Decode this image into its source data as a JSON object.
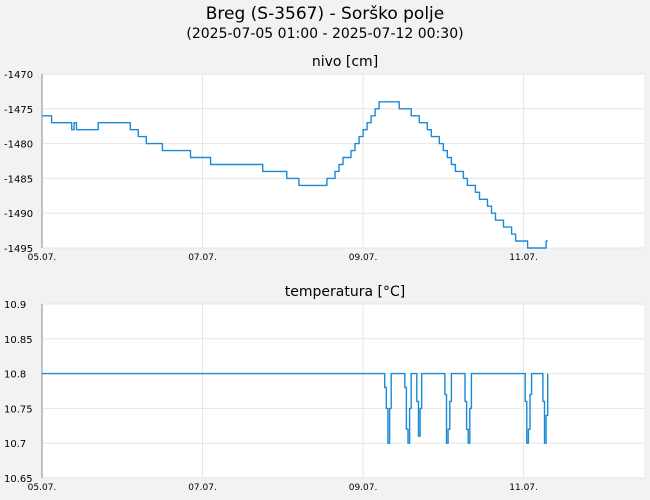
{
  "header": {
    "title": "Breg (S-3567) - Sorško polje",
    "subtitle": "(2025-07-05 01:00 - 2025-07-12 00:30)"
  },
  "colors": {
    "line": "#1a8ad8",
    "grid": "#e6e6e6",
    "plot_bg": "#ffffff",
    "page_bg": "#f2f2f2"
  },
  "chart_data": [
    {
      "type": "line",
      "title": "nivo [cm]",
      "x_unit": "day-of-July",
      "xlim": [
        5.0,
        12.5
      ],
      "ylim": [
        -1495,
        -1470
      ],
      "yticks": [
        -1470,
        -1475,
        -1480,
        -1485,
        -1490,
        -1495
      ],
      "xticks": [
        {
          "value": 5,
          "label": "05.07."
        },
        {
          "value": 7,
          "label": "07.07."
        },
        {
          "value": 9,
          "label": "09.07."
        },
        {
          "value": 11,
          "label": "11.07."
        }
      ],
      "grid": true,
      "step": true,
      "series": [
        {
          "x": [
            5.0,
            5.05,
            5.08,
            5.12,
            5.35,
            5.37,
            5.4,
            5.43,
            5.47,
            5.7,
            5.72,
            5.8,
            5.82,
            5.9,
            6.05,
            6.1,
            6.15,
            6.2,
            6.25,
            6.3,
            6.35,
            6.48,
            6.5,
            6.52,
            6.6,
            6.65,
            6.8,
            6.85,
            7.0,
            7.05,
            7.1,
            7.15,
            7.2,
            7.3,
            7.35,
            7.45,
            7.55,
            7.65,
            7.75,
            7.85,
            8.0,
            8.05,
            8.1,
            8.2,
            8.25,
            8.3,
            8.35,
            8.45,
            8.55,
            8.6,
            8.65,
            8.7,
            8.75,
            8.8,
            8.85,
            8.9,
            8.95,
            9.0,
            9.05,
            9.1,
            9.15,
            9.2,
            9.3,
            9.35,
            9.4,
            9.45,
            9.5,
            9.55,
            9.6,
            9.65,
            9.7,
            9.75,
            9.8,
            9.85,
            9.9,
            9.95,
            10.0,
            10.05,
            10.1,
            10.15,
            10.2,
            10.25,
            10.3,
            10.35,
            10.4,
            10.45,
            10.5,
            10.55,
            10.6,
            10.65,
            10.7,
            10.75,
            10.8,
            10.85,
            10.9,
            10.95,
            11.0,
            11.05,
            11.1,
            11.15,
            11.2,
            11.25,
            11.28,
            11.3
          ],
          "y": [
            -1476,
            -1476,
            -1476,
            -1477,
            -1477,
            -1478,
            -1477,
            -1478,
            -1478,
            -1477,
            -1477,
            -1477,
            -1477,
            -1477,
            -1477,
            -1478,
            -1478,
            -1479,
            -1479,
            -1480,
            -1480,
            -1480,
            -1481,
            -1481,
            -1481,
            -1481,
            -1481,
            -1482,
            -1482,
            -1482,
            -1483,
            -1483,
            -1483,
            -1483,
            -1483,
            -1483,
            -1483,
            -1483,
            -1484,
            -1484,
            -1484,
            -1485,
            -1485,
            -1486,
            -1486,
            -1486,
            -1486,
            -1486,
            -1485,
            -1485,
            -1484,
            -1483,
            -1482,
            -1482,
            -1481,
            -1480,
            -1479,
            -1478,
            -1477,
            -1476,
            -1475,
            -1474,
            -1474,
            -1474,
            -1474,
            -1475,
            -1475,
            -1475,
            -1476,
            -1476,
            -1477,
            -1477,
            -1478,
            -1479,
            -1479,
            -1480,
            -1481,
            -1482,
            -1483,
            -1484,
            -1484,
            -1485,
            -1486,
            -1486,
            -1487,
            -1488,
            -1488,
            -1489,
            -1490,
            -1491,
            -1491,
            -1492,
            -1492,
            -1493,
            -1494,
            -1494,
            -1494,
            -1495,
            -1495,
            -1495,
            -1495,
            -1495,
            -1494,
            -1494
          ]
        }
      ]
    },
    {
      "type": "line",
      "title": "temperatura [°C]",
      "x_unit": "day-of-July",
      "xlim": [
        5.0,
        12.5
      ],
      "ylim": [
        10.65,
        10.9
      ],
      "yticks": [
        10.9,
        10.85,
        10.8,
        10.75,
        10.7,
        10.65
      ],
      "xticks": [
        {
          "value": 5,
          "label": "05.07."
        },
        {
          "value": 7,
          "label": "07.07."
        },
        {
          "value": 9,
          "label": "09.07."
        },
        {
          "value": 11,
          "label": "11.07."
        }
      ],
      "grid": true,
      "step": true,
      "series": [
        {
          "x": [
            5.0,
            9.25,
            9.27,
            9.29,
            9.31,
            9.33,
            9.35,
            9.5,
            9.52,
            9.54,
            9.56,
            9.58,
            9.6,
            9.65,
            9.67,
            9.69,
            9.71,
            9.73,
            10.0,
            10.02,
            10.04,
            10.06,
            10.08,
            10.1,
            10.25,
            10.27,
            10.29,
            10.31,
            10.33,
            10.35,
            11.0,
            11.02,
            11.04,
            11.06,
            11.08,
            11.1,
            11.22,
            11.24,
            11.26,
            11.28,
            11.3
          ],
          "y": [
            10.8,
            10.8,
            10.78,
            10.75,
            10.7,
            10.75,
            10.8,
            10.8,
            10.78,
            10.72,
            10.7,
            10.75,
            10.8,
            10.8,
            10.76,
            10.71,
            10.75,
            10.8,
            10.8,
            10.77,
            10.7,
            10.72,
            10.76,
            10.8,
            10.8,
            10.76,
            10.72,
            10.7,
            10.75,
            10.8,
            10.8,
            10.76,
            10.7,
            10.72,
            10.77,
            10.8,
            10.8,
            10.76,
            10.7,
            10.74,
            10.8
          ]
        }
      ]
    }
  ]
}
